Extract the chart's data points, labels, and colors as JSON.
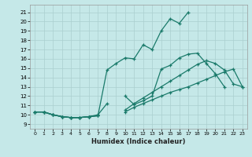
{
  "xlabel": "Humidex (Indice chaleur)",
  "xlim": [
    -0.5,
    23.5
  ],
  "ylim": [
    8.5,
    21.8
  ],
  "xticks": [
    0,
    1,
    2,
    3,
    4,
    5,
    6,
    7,
    8,
    9,
    10,
    11,
    12,
    13,
    14,
    15,
    16,
    17,
    18,
    19,
    20,
    21,
    22,
    23
  ],
  "yticks": [
    9,
    10,
    11,
    12,
    13,
    14,
    15,
    16,
    17,
    18,
    19,
    20,
    21
  ],
  "background_color": "#c5e8e8",
  "grid_color": "#aacfcf",
  "line_color": "#1a7a6a",
  "line_top_x": [
    0,
    1,
    2,
    3,
    4,
    5,
    6,
    7,
    8,
    9,
    10,
    11,
    12,
    13,
    14,
    15,
    16,
    17
  ],
  "line_top_y": [
    10.3,
    10.3,
    10.0,
    9.8,
    9.7,
    9.7,
    9.8,
    9.9,
    14.8,
    15.5,
    16.1,
    16.0,
    17.5,
    17.0,
    19.0,
    20.3,
    19.8,
    21.0
  ],
  "line_mid1_x": [
    0,
    1,
    2,
    3,
    4,
    5,
    6,
    7,
    8,
    9,
    10,
    11,
    12,
    13,
    14,
    15,
    16,
    17,
    18,
    19,
    20,
    21,
    22,
    23
  ],
  "line_mid1_y": [
    10.3,
    10.3,
    10.0,
    9.8,
    9.7,
    9.7,
    9.8,
    9.9,
    null,
    null,
    10.5,
    11.2,
    11.8,
    12.4,
    13.0,
    13.6,
    14.2,
    14.8,
    15.4,
    15.8,
    15.5,
    14.8,
    13.3,
    13.0
  ],
  "line_mid2_x": [
    0,
    1,
    2,
    3,
    4,
    5,
    6,
    7,
    8,
    9,
    10,
    11,
    12,
    13,
    14,
    15,
    16,
    17,
    18,
    19,
    20,
    21,
    22,
    23
  ],
  "line_mid2_y": [
    10.3,
    10.3,
    10.0,
    9.8,
    9.7,
    9.7,
    9.8,
    9.9,
    null,
    null,
    10.3,
    10.8,
    11.2,
    11.6,
    12.0,
    12.4,
    12.7,
    13.0,
    13.4,
    13.8,
    14.2,
    14.6,
    14.9,
    13.0
  ],
  "line_bot_x": [
    0,
    1,
    2,
    3,
    4,
    5,
    6,
    7,
    8,
    9,
    10,
    11,
    12,
    13,
    14,
    15,
    16,
    17,
    18,
    19,
    20,
    21
  ],
  "line_bot_y": [
    10.3,
    10.3,
    10.0,
    9.8,
    9.7,
    9.7,
    9.8,
    10.0,
    11.2,
    null,
    12.0,
    11.1,
    11.5,
    12.0,
    14.9,
    15.3,
    16.1,
    16.5,
    16.6,
    15.5,
    14.4,
    13.0
  ]
}
